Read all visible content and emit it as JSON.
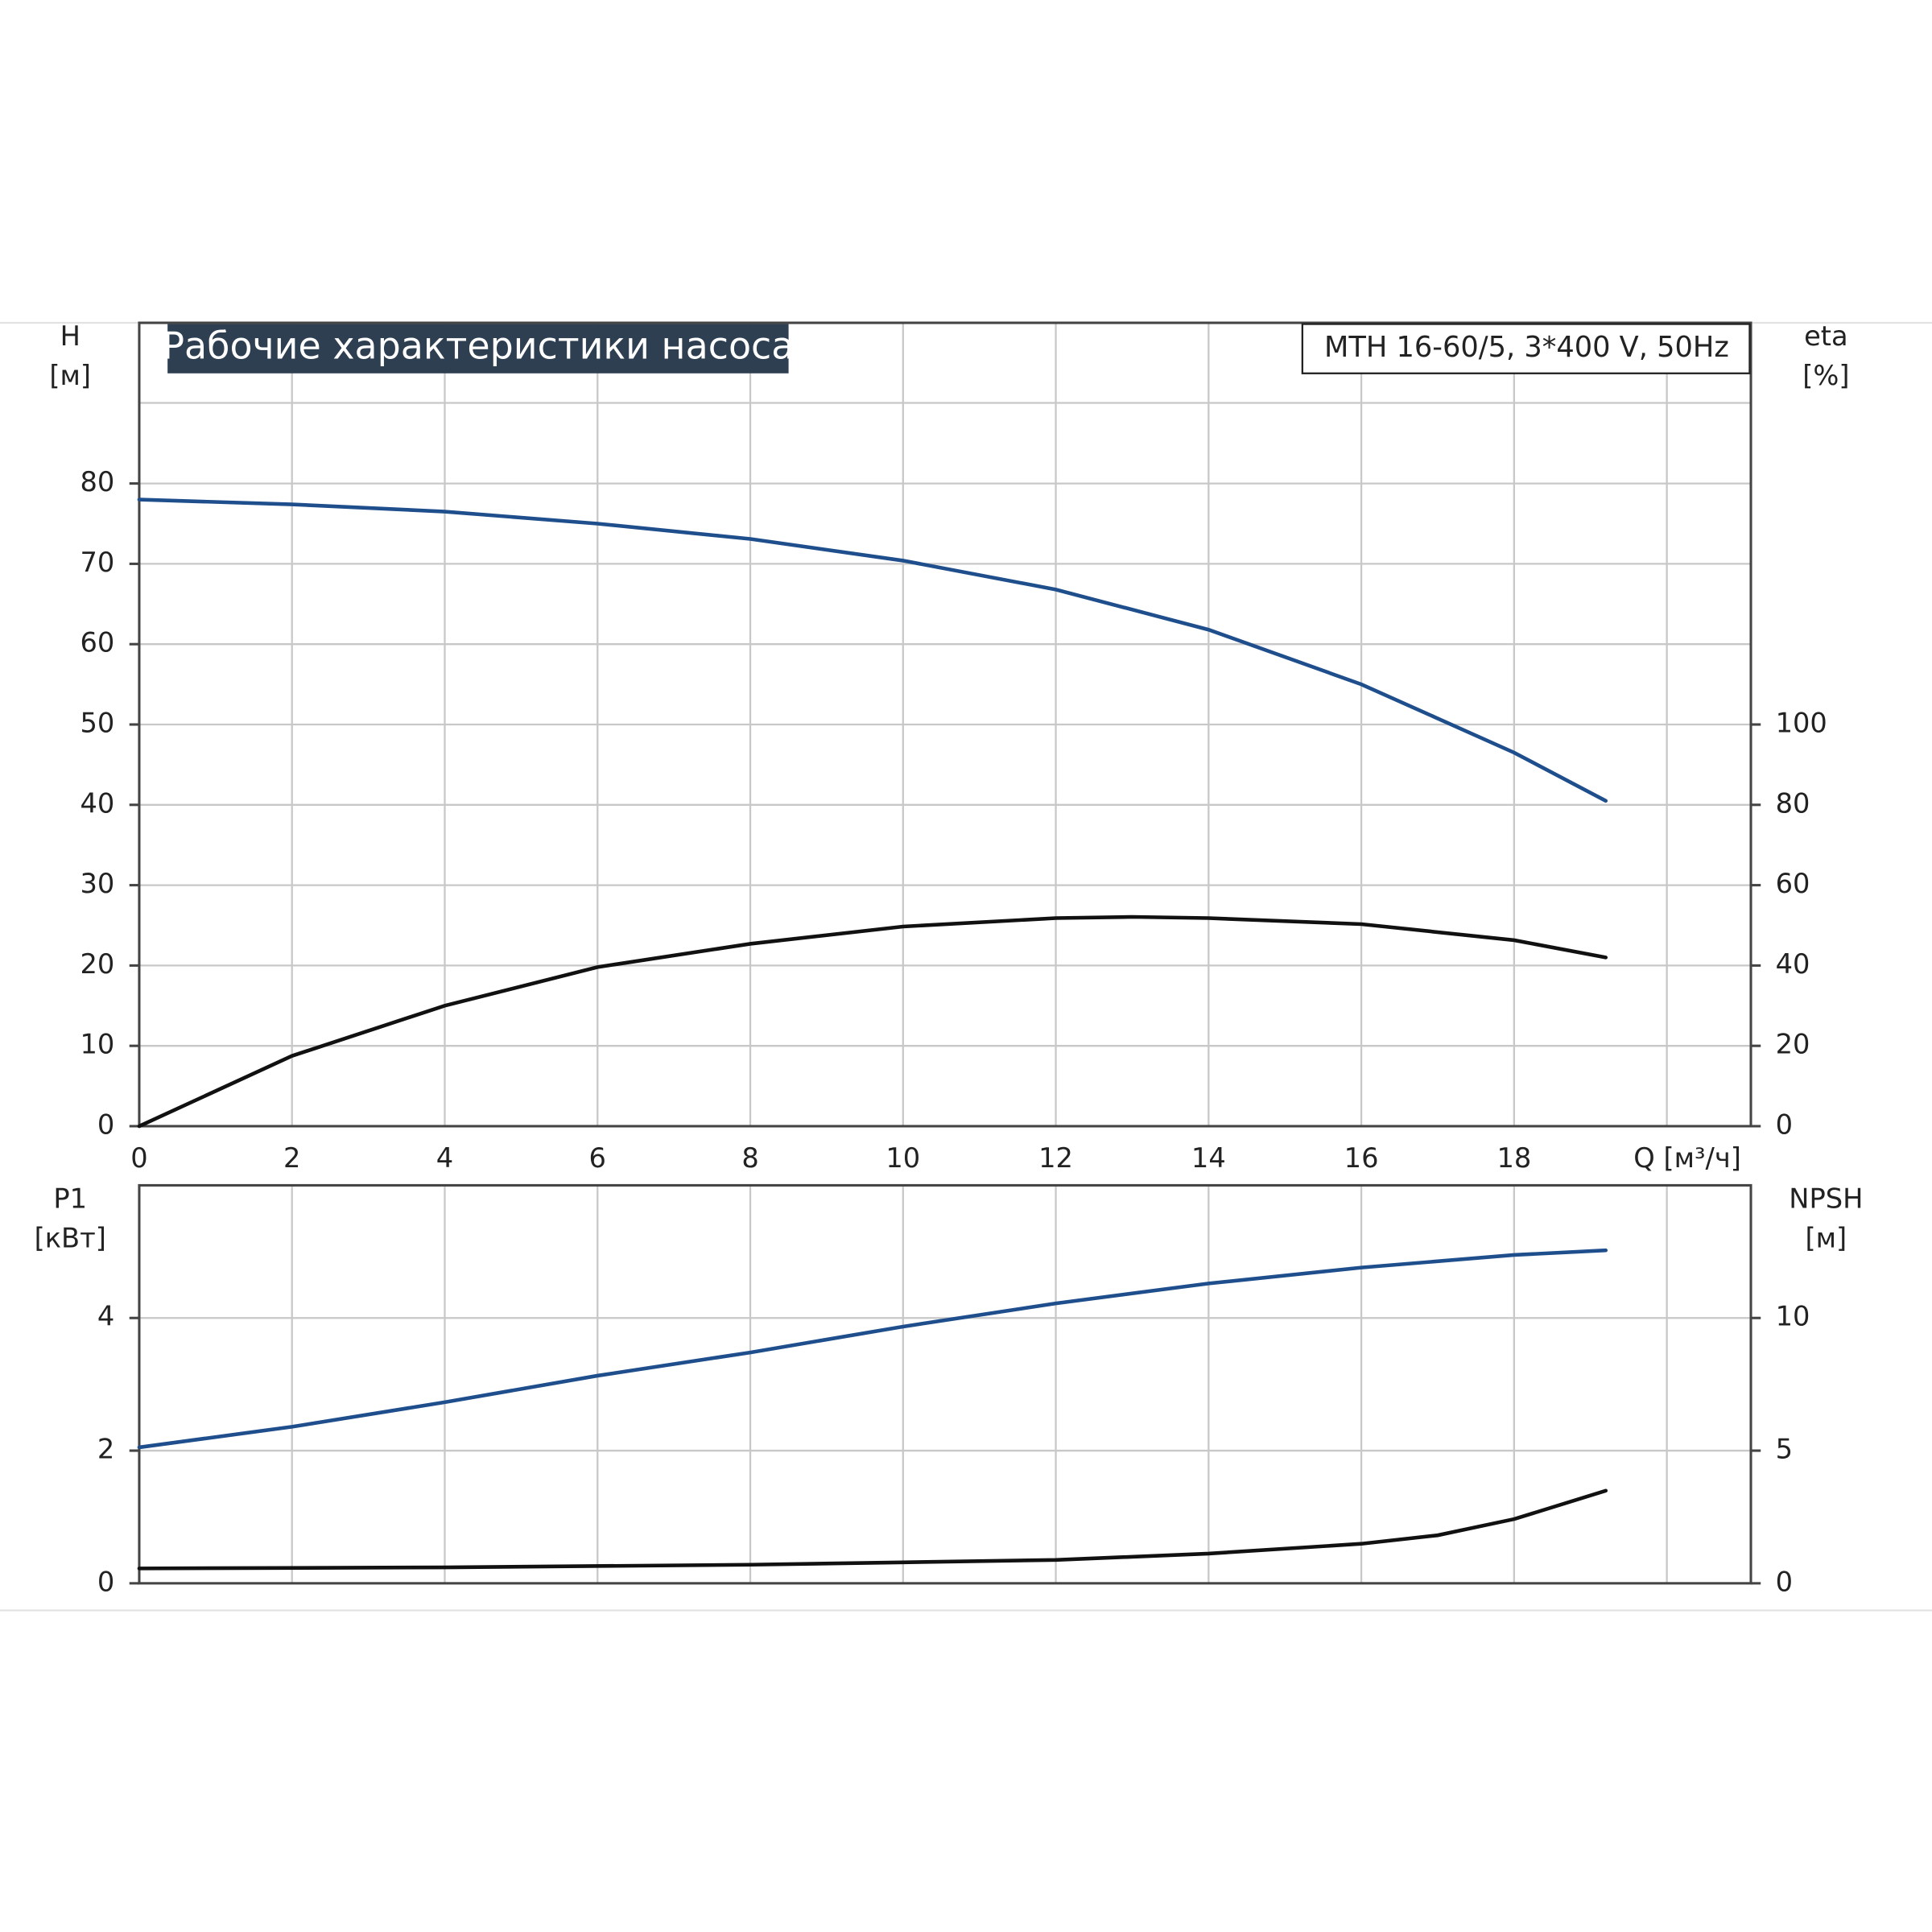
{
  "chart_data": [
    {
      "type": "line",
      "title": "Рабочие характеристики насоса",
      "annotation": "MTH 16-60/5, 3*400 V, 50Hz",
      "yunit": "[м]",
      "y2unit": "[%]",
      "xlim": [
        0,
        21.1
      ],
      "xticks": [
        0,
        2,
        4,
        6,
        8,
        10,
        12,
        14,
        16,
        18,
        {
          "value": 20,
          "label": "Q [м³/ч]"
        }
      ],
      "ylim": [
        0,
        100
      ],
      "yticks": [
        0,
        10,
        20,
        30,
        40,
        50,
        60,
        70,
        80
      ],
      "y2lim": [
        0,
        200
      ],
      "y2ticks": [
        0,
        20,
        40,
        60,
        80,
        100
      ],
      "grid": true,
      "series": [
        {
          "name": "H",
          "color": "#1f4e8c",
          "x": [
            0,
            2,
            4,
            6,
            8,
            10,
            12,
            14,
            16,
            18,
            19.2
          ],
          "values": [
            78,
            77.4,
            76.5,
            75,
            73.1,
            70.4,
            66.8,
            61.8,
            55,
            46.5,
            40.5
          ]
        },
        {
          "name": "eta",
          "color": "#111111",
          "axis": "y2",
          "x": [
            0,
            2,
            4,
            6,
            8,
            10,
            12,
            13,
            14,
            16,
            18,
            19.2
          ],
          "values": [
            0,
            17.5,
            30,
            39.6,
            45.4,
            49.7,
            51.8,
            52.1,
            51.8,
            50.3,
            46.3,
            42
          ]
        }
      ]
    },
    {
      "type": "line",
      "yunit": "[кВт]",
      "y2unit": "[м]",
      "xlim": [
        0,
        21.1
      ],
      "ylim": [
        0,
        6
      ],
      "yticks": [
        0,
        2,
        4
      ],
      "y2lim": [
        0,
        15
      ],
      "y2ticks": [
        0,
        5,
        10
      ],
      "grid": true,
      "series": [
        {
          "name": "P1",
          "color": "#1f4e8c",
          "x": [
            0,
            2,
            4,
            6,
            8,
            10,
            12,
            14,
            16,
            18,
            19.2
          ],
          "values": [
            2.05,
            2.36,
            2.73,
            3.13,
            3.48,
            3.87,
            4.22,
            4.52,
            4.76,
            4.95,
            5.02
          ]
        },
        {
          "name": "NPSH",
          "color": "#111111",
          "axis": "y2",
          "x": [
            0,
            4,
            8,
            10,
            12,
            14,
            16,
            17,
            18,
            19.2
          ],
          "values": [
            0.56,
            0.6,
            0.7,
            0.79,
            0.88,
            1.12,
            1.49,
            1.81,
            2.42,
            3.49
          ]
        }
      ]
    }
  ]
}
